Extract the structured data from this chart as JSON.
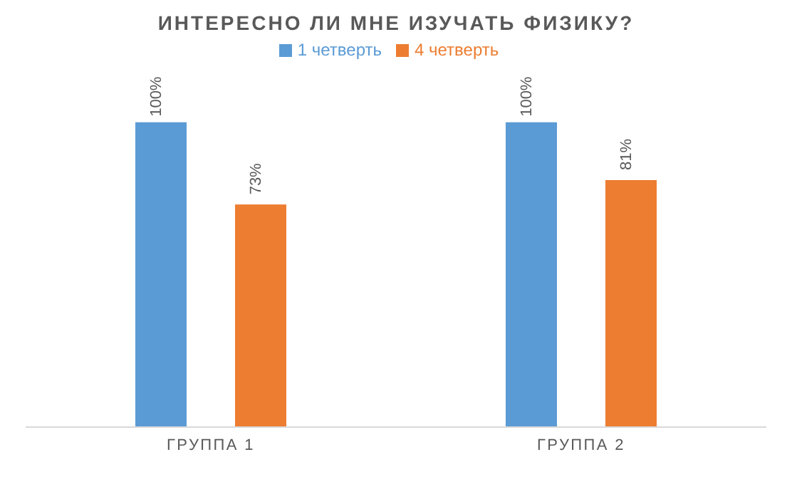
{
  "chart_data": {
    "type": "bar",
    "title": "ИНТЕРЕСНО ЛИ МНЕ ИЗУЧАТЬ ФИЗИКУ?",
    "categories": [
      "ГРУППА 1",
      "ГРУППА 2"
    ],
    "series": [
      {
        "name": "1 четверть",
        "color": "#5b9bd5",
        "values": [
          100,
          100
        ],
        "value_labels": [
          "100%",
          "100%"
        ]
      },
      {
        "name": "4 четверть",
        "color": "#ed7d31",
        "values": [
          73,
          81
        ],
        "value_labels": [
          "73%",
          "81%"
        ]
      }
    ],
    "legend": "top"
  }
}
